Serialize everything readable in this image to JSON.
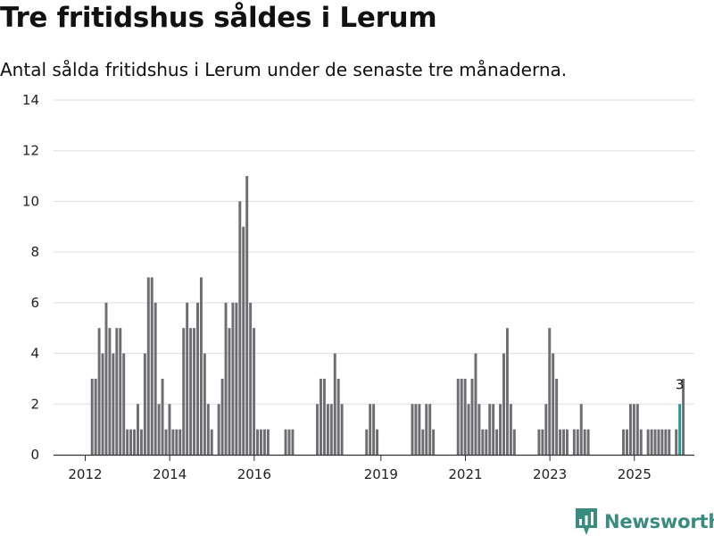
{
  "header": {
    "title": "Tre fritidshus såldes i Lerum",
    "subtitle": "Antal sålda fritidshus i Lerum under de senaste tre månaderna."
  },
  "brand": {
    "name": "Newsworthy",
    "icon": "newsworthy-logo-icon",
    "color": "#3a8c80"
  },
  "colors": {
    "bar": "#6e6d72",
    "highlight": "#1f9a92",
    "grid": "#dddddd",
    "axis": "#333333"
  },
  "chart_data": {
    "type": "bar",
    "title": "Tre fritidshus såldes i Lerum",
    "subtitle": "Antal sålda fritidshus i Lerum under de senaste tre månaderna.",
    "xlabel": "",
    "ylabel": "",
    "ylim": [
      0,
      14
    ],
    "yticks": [
      "0",
      "2",
      "4",
      "6",
      "8",
      "10",
      "12",
      "14"
    ],
    "xlim": [
      2011.25,
      2026.42
    ],
    "xticks": [
      {
        "label": "2012",
        "value": 2012
      },
      {
        "label": "2014",
        "value": 2014
      },
      {
        "label": "2016",
        "value": 2016
      },
      {
        "label": "2019",
        "value": 2019
      },
      {
        "label": "2021",
        "value": 2021
      },
      {
        "label": "2023",
        "value": 2023
      },
      {
        "label": "2025",
        "value": 2025
      }
    ],
    "grid": true,
    "start": 2011.33,
    "step": 0.0833,
    "values": [
      0,
      0,
      0,
      0,
      0,
      0,
      0,
      0,
      0,
      0,
      3,
      3,
      5,
      4,
      6,
      5,
      4,
      5,
      5,
      4,
      1,
      1,
      1,
      2,
      1,
      4,
      7,
      7,
      6,
      2,
      3,
      1,
      2,
      1,
      1,
      1,
      5,
      6,
      5,
      5,
      6,
      7,
      4,
      2,
      1,
      0,
      2,
      3,
      6,
      5,
      6,
      6,
      10,
      9,
      11,
      6,
      5,
      1,
      1,
      1,
      1,
      0,
      0,
      0,
      0,
      1,
      1,
      1,
      0,
      0,
      0,
      0,
      0,
      0,
      2,
      3,
      3,
      2,
      2,
      4,
      3,
      2,
      0,
      0,
      0,
      0,
      0,
      0,
      1,
      2,
      2,
      1,
      0,
      0,
      0,
      0,
      0,
      0,
      0,
      0,
      0,
      2,
      2,
      2,
      1,
      2,
      2,
      1,
      0,
      0,
      0,
      0,
      0,
      0,
      3,
      3,
      3,
      2,
      3,
      4,
      2,
      1,
      1,
      2,
      2,
      1,
      2,
      4,
      5,
      2,
      1,
      0,
      0,
      0,
      0,
      0,
      0,
      1,
      1,
      2,
      5,
      4,
      3,
      1,
      1,
      1,
      0,
      1,
      1,
      2,
      1,
      1,
      0,
      0,
      0,
      0,
      0,
      0,
      0,
      0,
      0,
      1,
      1,
      2,
      2,
      2,
      1,
      0,
      1,
      1,
      1,
      1,
      1,
      1,
      1,
      0,
      1,
      2,
      3
    ],
    "highlight_index": 177,
    "annotations": [
      {
        "index": 177,
        "text": "3"
      }
    ]
  }
}
